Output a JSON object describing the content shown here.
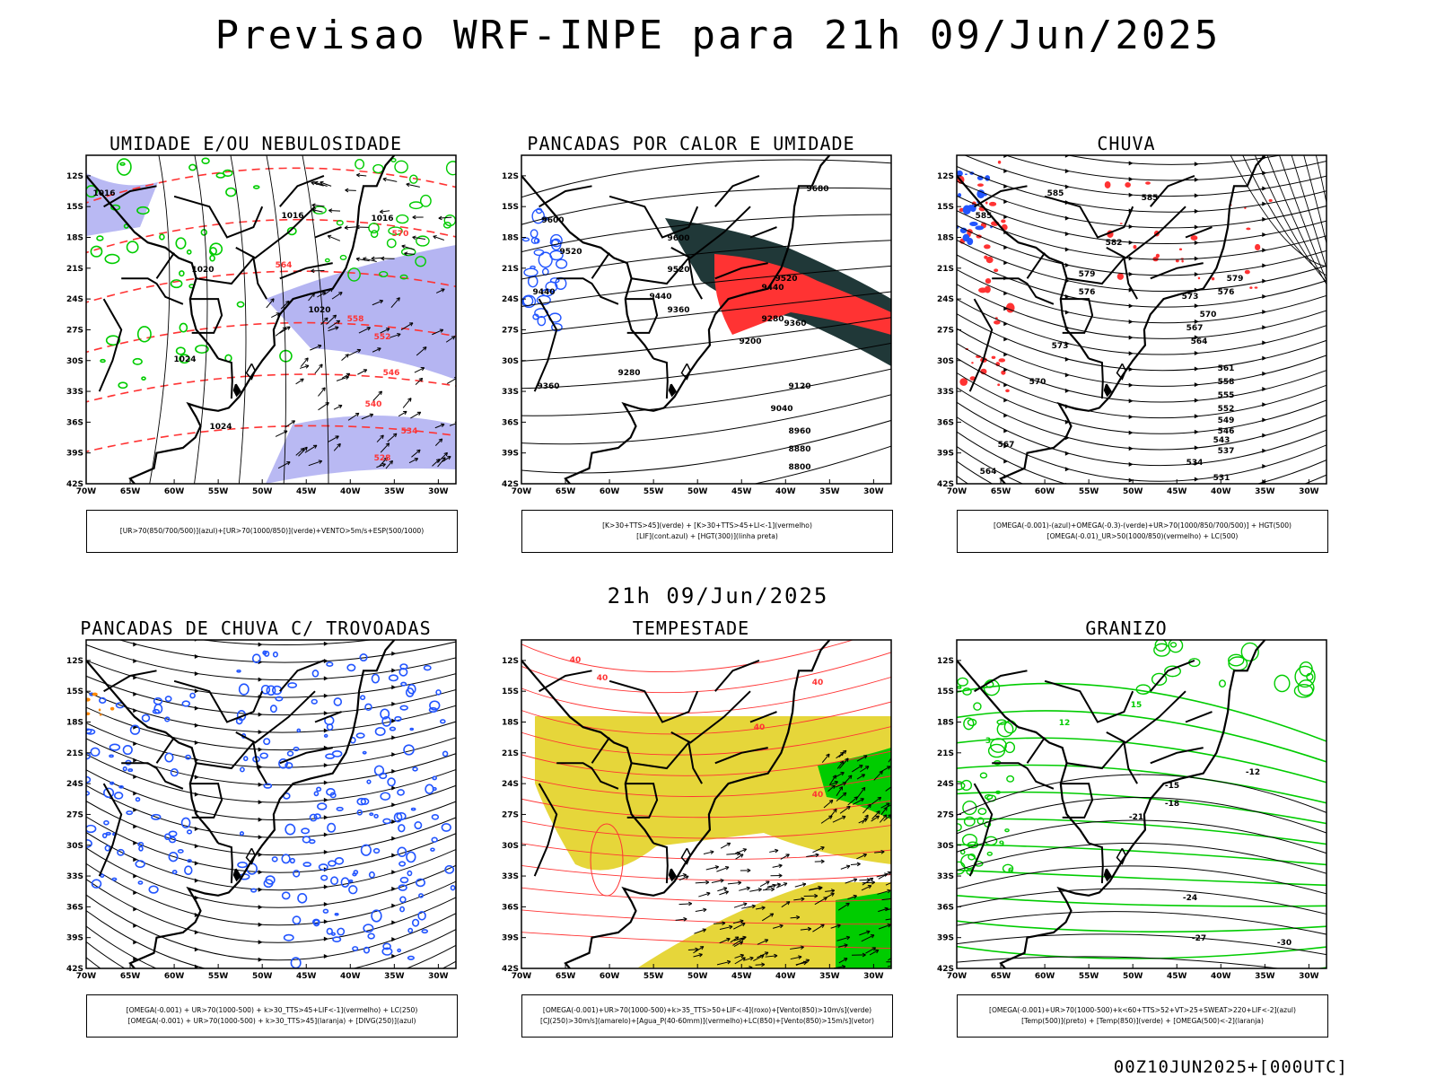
{
  "title": "Previsao WRF-INPE  para 21h 09/Jun/2025",
  "mid_title": "21h 09/Jun/2025",
  "footer_stamp": "00Z10JUN2025+[000UTC]",
  "axes": {
    "lat_ticks": [
      "12S",
      "15S",
      "18S",
      "21S",
      "24S",
      "27S",
      "30S",
      "33S",
      "36S",
      "39S",
      "42S"
    ],
    "lon_ticks": [
      "70W",
      "65W",
      "60W",
      "55W",
      "50W",
      "45W",
      "40W",
      "35W",
      "30W"
    ]
  },
  "colors": {
    "blue_fill": "#a8a8f0",
    "green": "#00cc00",
    "red": "#ff3333",
    "blue": "#2255ff",
    "dark_teal": "#203838",
    "yellow": "#e6d63a",
    "orange": "#ff8800",
    "black": "#000000"
  },
  "panels": [
    {
      "title": "UMIDADE E/OU NEBULOSIDADE",
      "legend": [
        "[UR>70(850/700/500)](azul)+[UR>70(1000/850)](verde)+VENTO>5m/s+ESP(500/1000)"
      ],
      "contour_labels": [
        {
          "text": "1016",
          "col": "black"
        },
        {
          "text": "1016",
          "col": "black"
        },
        {
          "text": "1016",
          "col": "black"
        },
        {
          "text": "1020",
          "col": "black"
        },
        {
          "text": "1020",
          "col": "black"
        },
        {
          "text": "1024",
          "col": "black"
        },
        {
          "text": "1024",
          "col": "black"
        },
        {
          "text": "570",
          "col": "red"
        },
        {
          "text": "564",
          "col": "red"
        },
        {
          "text": "558",
          "col": "red"
        },
        {
          "text": "552",
          "col": "red"
        },
        {
          "text": "546",
          "col": "red"
        },
        {
          "text": "540",
          "col": "red"
        },
        {
          "text": "534",
          "col": "red"
        },
        {
          "text": "528",
          "col": "red"
        }
      ]
    },
    {
      "title": "PANCADAS POR CALOR E UMIDADE",
      "legend": [
        "[K>30+TTS>45](verde) + [K>30+TTS>45+LI<-1](vermelho)",
        "[LIF](cont.azul) + [HGT(300)](linha preta)"
      ],
      "contour_labels": [
        {
          "text": "9680",
          "col": "black"
        },
        {
          "text": "9600",
          "col": "black"
        },
        {
          "text": "9600",
          "col": "black"
        },
        {
          "text": "9520",
          "col": "black"
        },
        {
          "text": "9520",
          "col": "black"
        },
        {
          "text": "9440",
          "col": "black"
        },
        {
          "text": "9440",
          "col": "black"
        },
        {
          "text": "9360",
          "col": "black"
        },
        {
          "text": "9360",
          "col": "black"
        },
        {
          "text": "9280",
          "col": "black"
        },
        {
          "text": "9200",
          "col": "black"
        },
        {
          "text": "9120",
          "col": "black"
        },
        {
          "text": "9040",
          "col": "black"
        },
        {
          "text": "8960",
          "col": "black"
        },
        {
          "text": "8880",
          "col": "black"
        },
        {
          "text": "8800",
          "col": "black"
        },
        {
          "text": "9360",
          "col": "black"
        },
        {
          "text": "9280",
          "col": "black"
        },
        {
          "text": "9520",
          "col": "black"
        },
        {
          "text": "9440",
          "col": "black"
        }
      ]
    },
    {
      "title": "CHUVA",
      "legend": [
        "[OMEGA(-0.001)-(azul)+OMEGA(-0.3)-(verde)+UR>70(1000/850/700/500)] + HGT(500)",
        "[OMEGA(-0.01)_UR>50(1000/850)(vermelho) + LC(500)"
      ],
      "contour_labels": [
        {
          "text": "585",
          "col": "black"
        },
        {
          "text": "585",
          "col": "black"
        },
        {
          "text": "585",
          "col": "black"
        },
        {
          "text": "582",
          "col": "black"
        },
        {
          "text": "579",
          "col": "black"
        },
        {
          "text": "579",
          "col": "black"
        },
        {
          "text": "576",
          "col": "black"
        },
        {
          "text": "576",
          "col": "black"
        },
        {
          "text": "573",
          "col": "black"
        },
        {
          "text": "573",
          "col": "black"
        },
        {
          "text": "570",
          "col": "black"
        },
        {
          "text": "570",
          "col": "black"
        },
        {
          "text": "567",
          "col": "black"
        },
        {
          "text": "564",
          "col": "black"
        },
        {
          "text": "561",
          "col": "black"
        },
        {
          "text": "558",
          "col": "black"
        },
        {
          "text": "555",
          "col": "black"
        },
        {
          "text": "552",
          "col": "black"
        },
        {
          "text": "549",
          "col": "black"
        },
        {
          "text": "546",
          "col": "black"
        },
        {
          "text": "543",
          "col": "black"
        },
        {
          "text": "537",
          "col": "black"
        },
        {
          "text": "534",
          "col": "black"
        },
        {
          "text": "531",
          "col": "black"
        },
        {
          "text": "567",
          "col": "black"
        },
        {
          "text": "564",
          "col": "black"
        }
      ]
    },
    {
      "title": "PANCADAS DE CHUVA C/ TROVOADAS",
      "legend": [
        "[OMEGA(-0.001) + UR>70(1000-500) + k>30_TTS>45+LIF<-1](vermelho) + LC(250)",
        "[OMEGA(-0.001) + UR>70(1000-500) + k>30_TTS>45](laranja) + [DIVG(250)](azul)"
      ],
      "contour_labels": []
    },
    {
      "title": "TEMPESTADE",
      "legend": [
        "[OMEGA(-0.001)+UR>70(1000-500)+k>35_TTS>50+LIF<-4](roxo)+[Vento(850)>10m/s](verde)",
        "[CJ(250)>30m/s](amarelo)+[Agua_P(40-60mm)](vermelho)+LC(850)+[Vento(850)>15m/s](vetor)"
      ],
      "contour_labels": [
        {
          "text": "40",
          "col": "red"
        },
        {
          "text": "40",
          "col": "red"
        },
        {
          "text": "40",
          "col": "red"
        },
        {
          "text": "40",
          "col": "red"
        },
        {
          "text": "40",
          "col": "red"
        }
      ]
    },
    {
      "title": "GRANIZO",
      "legend": [
        "[OMEGA(-0.001)+UR>70(1000-500)+k<60+TTS>52+VT>25+SWEAT>220+LIF<-2](azul)",
        "[Temp(500)](preto) + [Temp(850)](verde) + [OMEGA(500)<-2](laranja)"
      ],
      "contour_labels": [
        {
          "text": "-12",
          "col": "black"
        },
        {
          "text": "-15",
          "col": "black"
        },
        {
          "text": "-18",
          "col": "black"
        },
        {
          "text": "-21",
          "col": "black"
        },
        {
          "text": "-24",
          "col": "black"
        },
        {
          "text": "-27",
          "col": "black"
        },
        {
          "text": "-30",
          "col": "black"
        },
        {
          "text": "12",
          "col": "green"
        },
        {
          "text": "15",
          "col": "green"
        },
        {
          "text": "9",
          "col": "green"
        },
        {
          "text": "6",
          "col": "green"
        },
        {
          "text": "3",
          "col": "green"
        }
      ]
    }
  ]
}
